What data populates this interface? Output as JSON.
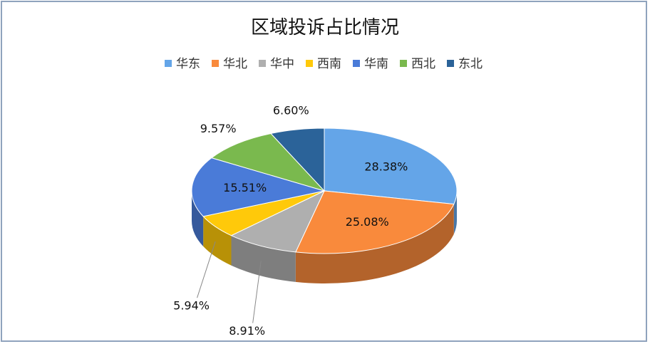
{
  "chart_data": {
    "type": "pie3d",
    "title": "区域投诉占比情况",
    "categories": [
      "华东",
      "华北",
      "华中",
      "西南",
      "华南",
      "西北",
      "东北"
    ],
    "values": [
      28.38,
      25.08,
      8.91,
      5.94,
      15.51,
      9.57,
      6.6
    ],
    "value_labels": [
      "28.38%",
      "25.08%",
      "8.91%",
      "5.94%",
      "15.51%",
      "9.57%",
      "6.60%"
    ],
    "colors": [
      "#64a5e8",
      "#f98a3c",
      "#afafaf",
      "#ffc90a",
      "#4a7bd8",
      "#7ab94e",
      "#2b6399"
    ],
    "legend": "top"
  }
}
